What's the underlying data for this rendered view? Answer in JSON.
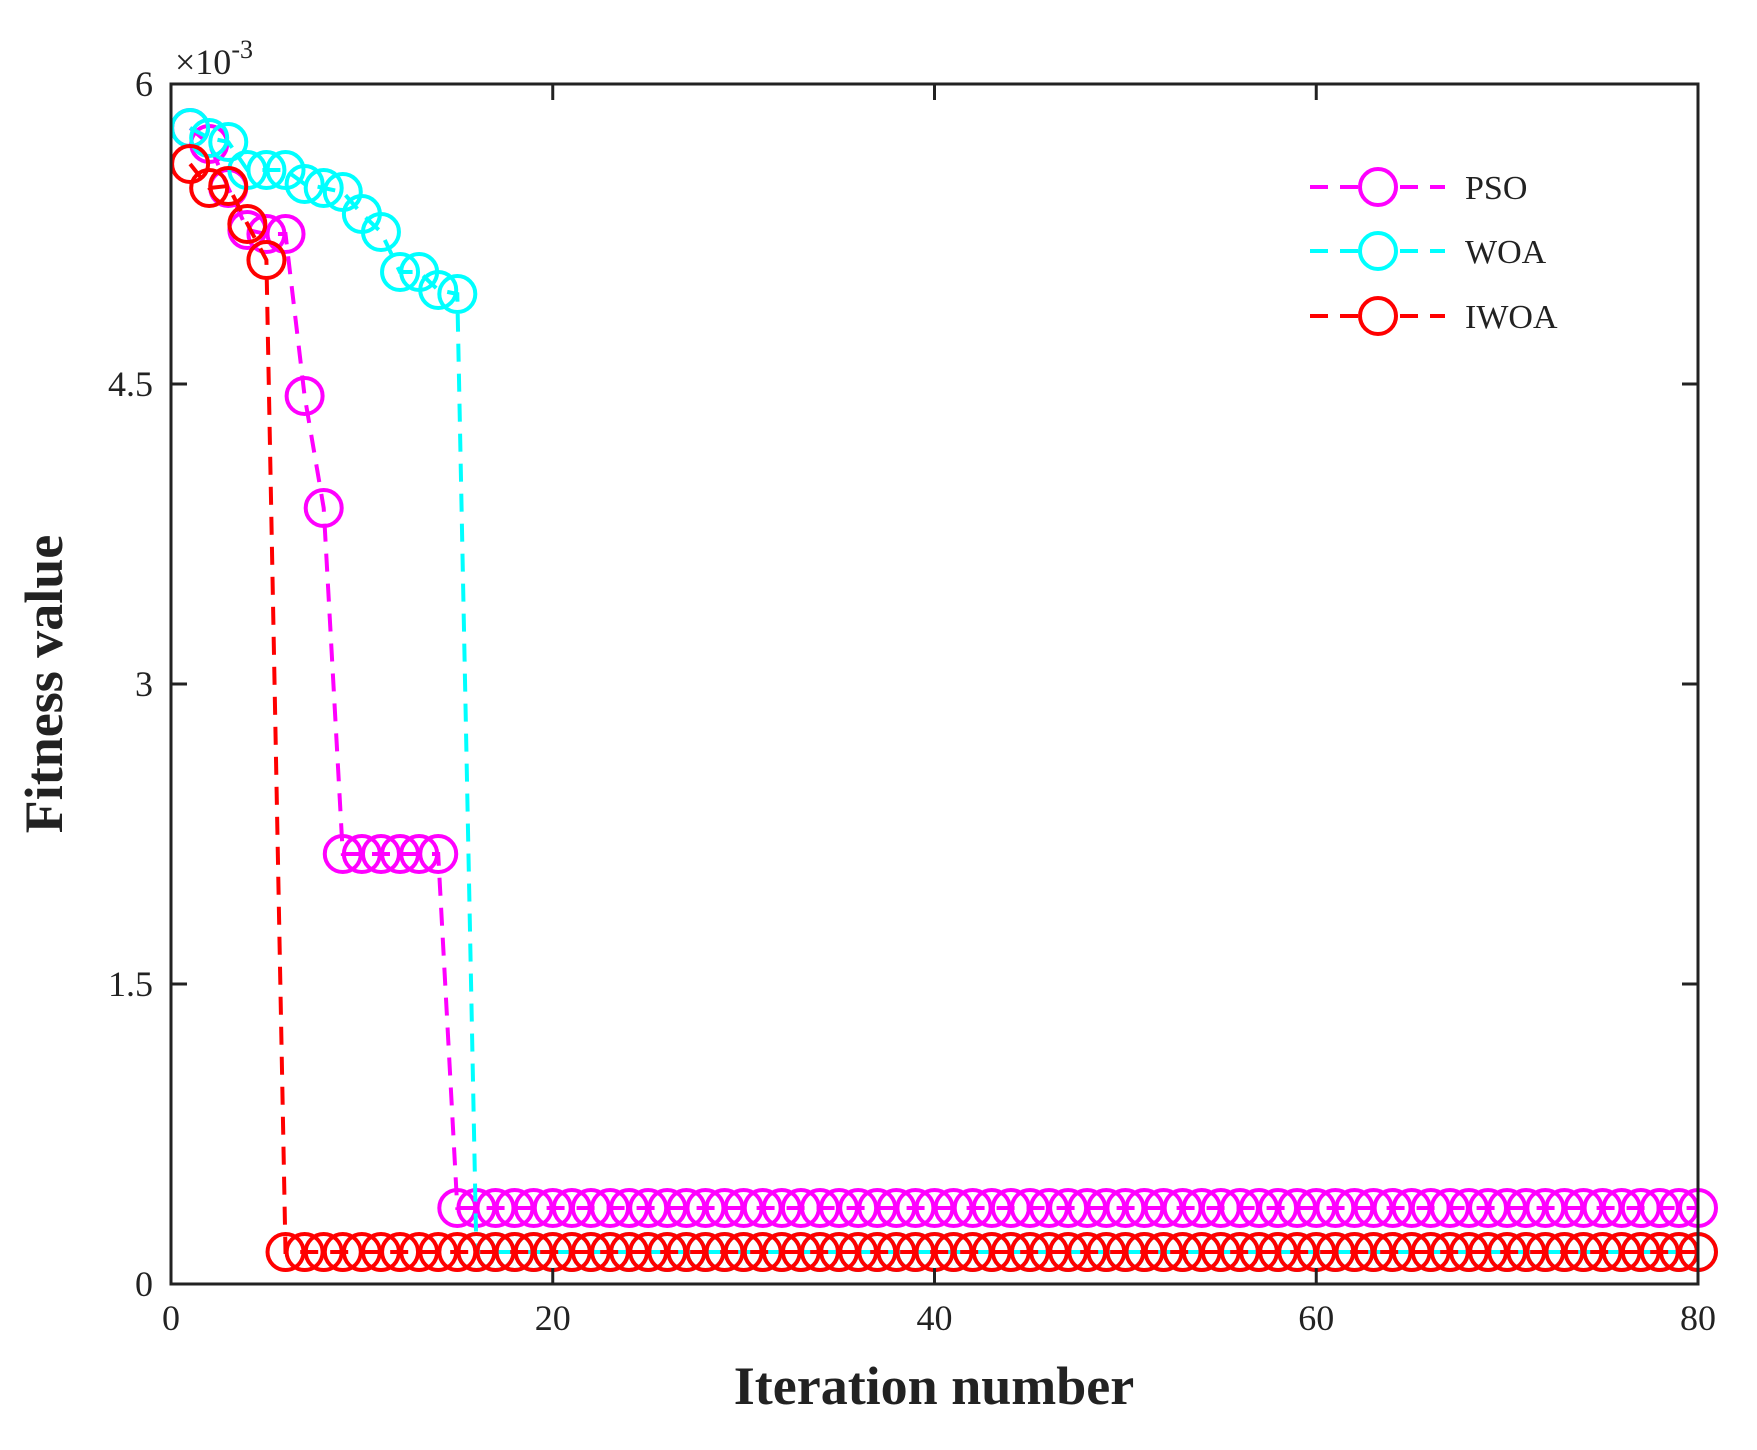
{
  "chart_data": {
    "type": "line",
    "title": "",
    "xlabel": "Iteration number",
    "ylabel": "Fitness value",
    "xlim": [
      0,
      80
    ],
    "ylim": [
      0,
      0.006
    ],
    "y_exponent_label": "×10",
    "y_exponent_power": "-3",
    "xticks": [
      0,
      20,
      40,
      60,
      80
    ],
    "xtick_labels": [
      "0",
      "20",
      "40",
      "60",
      "80"
    ],
    "yticks": [
      0,
      0.0015,
      0.003,
      0.0045,
      0.006
    ],
    "ytick_labels": [
      "0",
      "1.5",
      "3",
      "4.5",
      "6"
    ],
    "grid": false,
    "legend_position": "top-right",
    "x": [
      1,
      2,
      3,
      4,
      5,
      6,
      7,
      8,
      9,
      10,
      11,
      12,
      13,
      14,
      15,
      16,
      17,
      18,
      19,
      20,
      21,
      22,
      23,
      24,
      25,
      26,
      27,
      28,
      29,
      30,
      31,
      32,
      33,
      34,
      35,
      36,
      37,
      38,
      39,
      40,
      41,
      42,
      43,
      44,
      45,
      46,
      47,
      48,
      49,
      50,
      51,
      52,
      53,
      54,
      55,
      56,
      57,
      58,
      59,
      60,
      61,
      62,
      63,
      64,
      65,
      66,
      67,
      68,
      69,
      70,
      71,
      72,
      73,
      74,
      75,
      76,
      77,
      78,
      79,
      80
    ],
    "series": [
      {
        "name": "PSO",
        "color": "#ff00ff",
        "values": [
          0.00578,
          0.0057,
          0.00548,
          0.00527,
          0.00525,
          0.00525,
          0.00444,
          0.00388,
          0.00215,
          0.00215,
          0.00215,
          0.00215,
          0.00215,
          0.00215,
          0.00038,
          0.00038,
          0.00038,
          0.00038,
          0.00038,
          0.00038,
          0.00038,
          0.00038,
          0.00038,
          0.00038,
          0.00038,
          0.00038,
          0.00038,
          0.00038,
          0.00038,
          0.00038,
          0.00038,
          0.00038,
          0.00038,
          0.00038,
          0.00038,
          0.00038,
          0.00038,
          0.00038,
          0.00038,
          0.00038,
          0.00038,
          0.00038,
          0.00038,
          0.00038,
          0.00038,
          0.00038,
          0.00038,
          0.00038,
          0.00038,
          0.00038,
          0.00038,
          0.00038,
          0.00038,
          0.00038,
          0.00038,
          0.00038,
          0.00038,
          0.00038,
          0.00038,
          0.00038,
          0.00038,
          0.00038,
          0.00038,
          0.00038,
          0.00038,
          0.00038,
          0.00038,
          0.00038,
          0.00038,
          0.00038,
          0.00038,
          0.00038,
          0.00038,
          0.00038,
          0.00038,
          0.00038,
          0.00038,
          0.00038,
          0.00038,
          0.00038
        ]
      },
      {
        "name": "WOA",
        "color": "#00ffff",
        "values": [
          0.00578,
          0.00573,
          0.00571,
          0.00557,
          0.00557,
          0.00557,
          0.0055,
          0.00548,
          0.00546,
          0.00535,
          0.00526,
          0.00506,
          0.00506,
          0.00497,
          0.00495,
          0.00016,
          0.00016,
          0.00016,
          0.00016,
          0.00016,
          0.00016,
          0.00016,
          0.00016,
          0.00016,
          0.00016,
          0.00016,
          0.00016,
          0.00016,
          0.00016,
          0.00016,
          0.00016,
          0.00016,
          0.00016,
          0.00016,
          0.00016,
          0.00016,
          0.00016,
          0.00016,
          0.00016,
          0.00016,
          0.00016,
          0.00016,
          0.00016,
          0.00016,
          0.00016,
          0.00016,
          0.00016,
          0.00016,
          0.00016,
          0.00016,
          0.00016,
          0.00016,
          0.00016,
          0.00016,
          0.00016,
          0.00016,
          0.00016,
          0.00016,
          0.00016,
          0.00016,
          0.00016,
          0.00016,
          0.00016,
          0.00016,
          0.00016,
          0.00016,
          0.00016,
          0.00016,
          0.00016,
          0.00016,
          0.00016,
          0.00016,
          0.00016,
          0.00016,
          0.00016,
          0.00016,
          0.00016,
          0.00016,
          0.00016,
          0.00016
        ]
      },
      {
        "name": "IWOA",
        "color": "#ff0000",
        "values": [
          0.0056,
          0.00548,
          0.00549,
          0.0053,
          0.00512,
          0.00016,
          0.00016,
          0.00016,
          0.00016,
          0.00016,
          0.00016,
          0.00016,
          0.00016,
          0.00016,
          0.00016,
          0.00016,
          0.00016,
          0.00016,
          0.00016,
          0.00016,
          0.00016,
          0.00016,
          0.00016,
          0.00016,
          0.00016,
          0.00016,
          0.00016,
          0.00016,
          0.00016,
          0.00016,
          0.00016,
          0.00016,
          0.00016,
          0.00016,
          0.00016,
          0.00016,
          0.00016,
          0.00016,
          0.00016,
          0.00016,
          0.00016,
          0.00016,
          0.00016,
          0.00016,
          0.00016,
          0.00016,
          0.00016,
          0.00016,
          0.00016,
          0.00016,
          0.00016,
          0.00016,
          0.00016,
          0.00016,
          0.00016,
          0.00016,
          0.00016,
          0.00016,
          0.00016,
          0.00016,
          0.00016,
          0.00016,
          0.00016,
          0.00016,
          0.00016,
          0.00016,
          0.00016,
          0.00016,
          0.00016,
          0.00016,
          0.00016,
          0.00016,
          0.00016,
          0.00016,
          0.00016,
          0.00016,
          0.00016,
          0.00016,
          0.00016,
          0.00016
        ]
      }
    ]
  }
}
